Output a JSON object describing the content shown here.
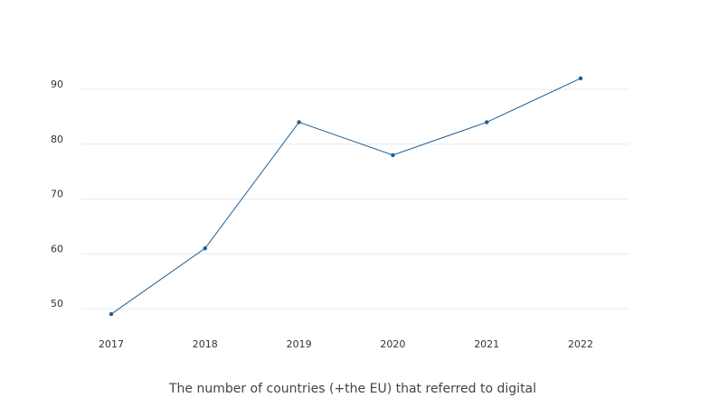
{
  "chart_data": {
    "type": "line",
    "title": "The number of countries (+the EU) that referred to digital",
    "xlabel": "",
    "ylabel": "",
    "categories": [
      "2017",
      "2018",
      "2019",
      "2020",
      "2021",
      "2022"
    ],
    "series": [
      {
        "values": [
          49,
          61,
          84,
          78,
          84,
          92
        ]
      }
    ],
    "yticks": [
      50,
      60,
      70,
      80,
      90
    ],
    "ylim": [
      46,
      94
    ],
    "grid": true,
    "colors": {
      "line": "#1a5d95",
      "grid": "#e8e8e8",
      "text": "#333333"
    }
  }
}
